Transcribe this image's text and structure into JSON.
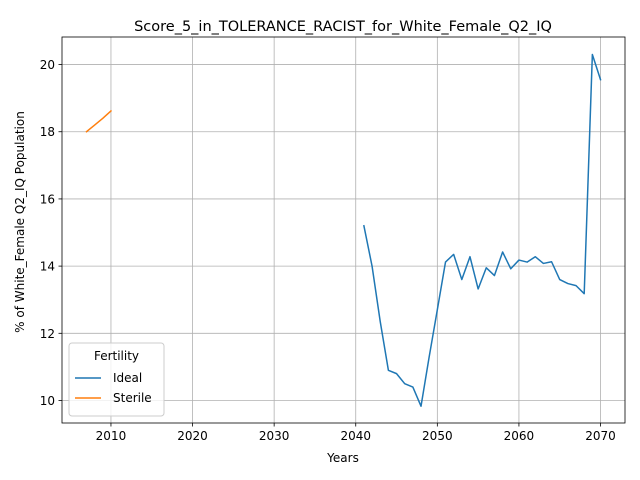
{
  "chart_data": {
    "type": "line",
    "title": "Score_5_in_TOLERANCE_RACIST_for_White_Female_Q2_IQ",
    "xlabel": "Years",
    "ylabel": "% of White_Female Q2_IQ Population",
    "xlim": [
      2004,
      2073
    ],
    "ylim": [
      9.33,
      20.82
    ],
    "xticks": [
      2010,
      2020,
      2030,
      2040,
      2050,
      2060,
      2070
    ],
    "yticks": [
      10,
      12,
      14,
      16,
      18,
      20
    ],
    "grid": true,
    "legend": {
      "title": "Fertility",
      "position": "lower-left"
    },
    "series": [
      {
        "name": "Ideal",
        "color": "#1f77b4",
        "x": [
          2041,
          2042,
          2043,
          2044,
          2045,
          2046,
          2047,
          2048,
          2049,
          2050,
          2051,
          2052,
          2053,
          2054,
          2055,
          2056,
          2057,
          2058,
          2059,
          2060,
          2061,
          2062,
          2063,
          2064,
          2065,
          2066,
          2067,
          2068,
          2069,
          2070
        ],
        "y": [
          15.2,
          14.0,
          12.35,
          10.9,
          10.8,
          10.5,
          10.4,
          9.83,
          11.3,
          12.7,
          14.12,
          14.35,
          13.6,
          14.28,
          13.32,
          13.95,
          13.72,
          14.42,
          13.92,
          14.18,
          14.12,
          14.28,
          14.08,
          14.13,
          13.6,
          13.48,
          13.42,
          13.18,
          20.3,
          19.55
        ]
      },
      {
        "name": "Sterile",
        "color": "#ff7f0e",
        "x": [
          2007,
          2008,
          2009,
          2010
        ],
        "y": [
          18.0,
          18.2,
          18.4,
          18.62
        ]
      }
    ]
  }
}
